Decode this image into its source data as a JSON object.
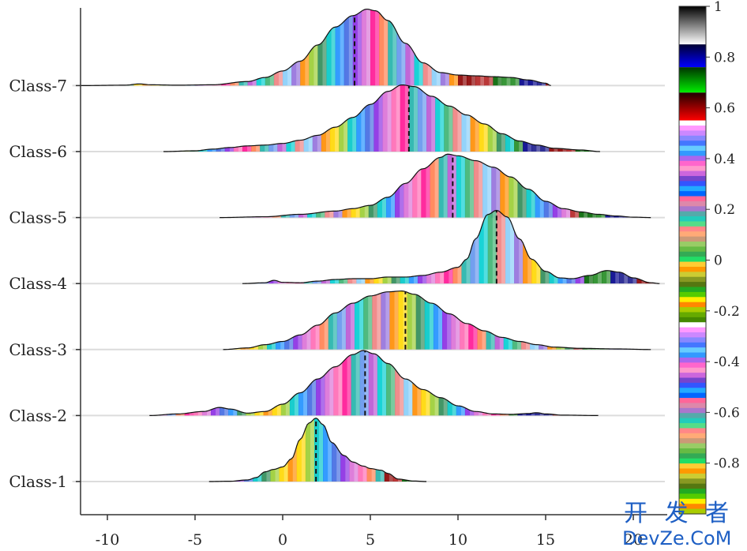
{
  "chart_data": {
    "type": "ridgeline",
    "xlim": [
      -12,
      22
    ],
    "xticks": [
      -10,
      -5,
      0,
      5,
      10,
      15,
      20
    ],
    "grid": "horizontal baseline per class",
    "median_marker": "dashed vertical line",
    "classes": [
      {
        "name": "Class-1",
        "median": 1.9,
        "density": [
          [
            -4.2,
            0
          ],
          [
            -3,
            0.004
          ],
          [
            -2,
            0.02
          ],
          [
            -1.5,
            0.05
          ],
          [
            -1,
            0.12
          ],
          [
            -0.5,
            0.15
          ],
          [
            0,
            0.18
          ],
          [
            0.5,
            0.28
          ],
          [
            1,
            0.52
          ],
          [
            1.5,
            0.72
          ],
          [
            1.9,
            0.78
          ],
          [
            2.3,
            0.7
          ],
          [
            2.8,
            0.48
          ],
          [
            3.5,
            0.32
          ],
          [
            4,
            0.24
          ],
          [
            4.6,
            0.19
          ],
          [
            5,
            0.16
          ],
          [
            5.6,
            0.14
          ],
          [
            6,
            0.1
          ],
          [
            6.6,
            0.03
          ],
          [
            7.5,
            0.006
          ],
          [
            8.2,
            0
          ]
        ]
      },
      {
        "name": "Class-2",
        "median": 4.7,
        "density": [
          [
            -7.6,
            0
          ],
          [
            -6,
            0.02
          ],
          [
            -4.5,
            0.05
          ],
          [
            -3.6,
            0.1
          ],
          [
            -3,
            0.08
          ],
          [
            -2,
            0.03
          ],
          [
            -1,
            0.05
          ],
          [
            0,
            0.14
          ],
          [
            1,
            0.28
          ],
          [
            2,
            0.45
          ],
          [
            3,
            0.6
          ],
          [
            4,
            0.75
          ],
          [
            4.6,
            0.8
          ],
          [
            5.2,
            0.76
          ],
          [
            6,
            0.64
          ],
          [
            7,
            0.45
          ],
          [
            8,
            0.32
          ],
          [
            9,
            0.22
          ],
          [
            10,
            0.12
          ],
          [
            11,
            0.05
          ],
          [
            12,
            0.02
          ],
          [
            13,
            0.015
          ],
          [
            14,
            0.025
          ],
          [
            14.5,
            0.035
          ],
          [
            15,
            0.02
          ],
          [
            16,
            0.005
          ],
          [
            18,
            0
          ]
        ]
      },
      {
        "name": "Class-3",
        "median": 7.0,
        "density": [
          [
            -3.4,
            0
          ],
          [
            -2,
            0.02
          ],
          [
            -1,
            0.06
          ],
          [
            0,
            0.1
          ],
          [
            1,
            0.18
          ],
          [
            2,
            0.3
          ],
          [
            3,
            0.45
          ],
          [
            4,
            0.57
          ],
          [
            5,
            0.66
          ],
          [
            6,
            0.71
          ],
          [
            6.8,
            0.72
          ],
          [
            7.5,
            0.68
          ],
          [
            8.5,
            0.57
          ],
          [
            9.5,
            0.44
          ],
          [
            10.5,
            0.32
          ],
          [
            11.5,
            0.23
          ],
          [
            12.5,
            0.15
          ],
          [
            13.5,
            0.1
          ],
          [
            14.5,
            0.06
          ],
          [
            15.5,
            0.03
          ],
          [
            17,
            0.015
          ],
          [
            19,
            0.008
          ],
          [
            21,
            0
          ]
        ]
      },
      {
        "name": "Class-4",
        "median": 12.2,
        "density": [
          [
            -2.3,
            0
          ],
          [
            -1,
            0.01
          ],
          [
            -0.5,
            0.04
          ],
          [
            0,
            0.015
          ],
          [
            1,
            0.01
          ],
          [
            2,
            0.03
          ],
          [
            3,
            0.05
          ],
          [
            4,
            0.06
          ],
          [
            5,
            0.06
          ],
          [
            6,
            0.08
          ],
          [
            7,
            0.08
          ],
          [
            8,
            0.1
          ],
          [
            9,
            0.14
          ],
          [
            10,
            0.2
          ],
          [
            10.5,
            0.3
          ],
          [
            11,
            0.55
          ],
          [
            11.7,
            0.85
          ],
          [
            12.2,
            0.9
          ],
          [
            12.8,
            0.82
          ],
          [
            13.5,
            0.55
          ],
          [
            14.2,
            0.3
          ],
          [
            15,
            0.15
          ],
          [
            15.8,
            0.07
          ],
          [
            16.5,
            0.06
          ],
          [
            17.5,
            0.1
          ],
          [
            18.5,
            0.16
          ],
          [
            19.2,
            0.14
          ],
          [
            20,
            0.07
          ],
          [
            21,
            0.01
          ],
          [
            21.5,
            0
          ]
        ]
      },
      {
        "name": "Class-5",
        "median": 9.7,
        "density": [
          [
            -3.6,
            0
          ],
          [
            -1,
            0.01
          ],
          [
            1,
            0.04
          ],
          [
            3,
            0.08
          ],
          [
            4,
            0.11
          ],
          [
            5,
            0.15
          ],
          [
            6,
            0.25
          ],
          [
            7,
            0.42
          ],
          [
            8,
            0.6
          ],
          [
            9,
            0.74
          ],
          [
            9.4,
            0.78
          ],
          [
            10,
            0.76
          ],
          [
            11,
            0.7
          ],
          [
            12,
            0.62
          ],
          [
            13,
            0.5
          ],
          [
            14,
            0.35
          ],
          [
            15,
            0.2
          ],
          [
            16,
            0.11
          ],
          [
            17,
            0.07
          ],
          [
            18,
            0.04
          ],
          [
            19,
            0.02
          ],
          [
            20,
            0.005
          ],
          [
            21,
            0
          ]
        ]
      },
      {
        "name": "Class-6",
        "median": 7.2,
        "density": [
          [
            -6.8,
            0
          ],
          [
            -5,
            0.01
          ],
          [
            -4,
            0.03
          ],
          [
            -3,
            0.05
          ],
          [
            -2,
            0.07
          ],
          [
            -1,
            0.08
          ],
          [
            0,
            0.1
          ],
          [
            1,
            0.14
          ],
          [
            2,
            0.2
          ],
          [
            3,
            0.3
          ],
          [
            4,
            0.42
          ],
          [
            5,
            0.58
          ],
          [
            6,
            0.74
          ],
          [
            6.8,
            0.82
          ],
          [
            7.5,
            0.8
          ],
          [
            8.5,
            0.68
          ],
          [
            9.5,
            0.56
          ],
          [
            10.5,
            0.45
          ],
          [
            11.5,
            0.34
          ],
          [
            12.5,
            0.22
          ],
          [
            13.5,
            0.13
          ],
          [
            14.5,
            0.08
          ],
          [
            15.5,
            0.04
          ],
          [
            17,
            0.02
          ],
          [
            18.1,
            0
          ]
        ]
      },
      {
        "name": "Class-7",
        "median": 4.1,
        "density": [
          [
            -11.5,
            0
          ],
          [
            -9,
            0.005
          ],
          [
            -8.2,
            0.02
          ],
          [
            -7.5,
            0.01
          ],
          [
            -6,
            0.005
          ],
          [
            -4,
            0.01
          ],
          [
            -2,
            0.05
          ],
          [
            -1,
            0.1
          ],
          [
            0,
            0.18
          ],
          [
            1,
            0.3
          ],
          [
            2,
            0.5
          ],
          [
            3,
            0.72
          ],
          [
            4,
            0.86
          ],
          [
            4.8,
            0.94
          ],
          [
            5.3,
            0.92
          ],
          [
            6,
            0.8
          ],
          [
            7,
            0.52
          ],
          [
            8,
            0.28
          ],
          [
            9,
            0.16
          ],
          [
            10,
            0.13
          ],
          [
            11,
            0.12
          ],
          [
            12,
            0.11
          ],
          [
            13,
            0.1
          ],
          [
            14,
            0.07
          ],
          [
            15,
            0.03
          ],
          [
            15.3,
            0
          ]
        ]
      }
    ]
  },
  "colorbar": {
    "ticks": [
      "1",
      "0.8",
      "0.6",
      "0.4",
      "0.2",
      "0",
      "-0.2",
      "-0.4",
      "-0.6",
      "-0.8"
    ],
    "tick_values": [
      1,
      0.8,
      0.6,
      0.4,
      0.2,
      0,
      -0.2,
      -0.4,
      -0.6,
      -0.8
    ],
    "range": [
      -1,
      1
    ]
  },
  "watermark": {
    "line1": "开 发 者",
    "line2": "DevZe.CoM"
  }
}
